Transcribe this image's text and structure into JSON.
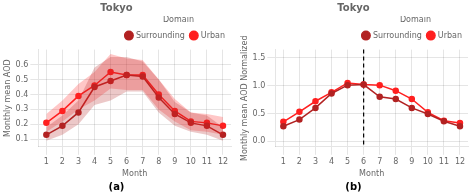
{
  "chart_data": [
    {
      "type": "line",
      "title": "Tokyo",
      "annotation": "(a)",
      "xlabel": "Month",
      "ylabel": "Monthly mean AOD",
      "x": [
        1,
        2,
        3,
        4,
        5,
        6,
        7,
        8,
        9,
        10,
        11,
        12
      ],
      "series": [
        {
          "name": "Surrounding",
          "color": "#b22222",
          "values": [
            0.13,
            0.19,
            0.28,
            0.45,
            0.49,
            0.53,
            0.52,
            0.38,
            0.27,
            0.21,
            0.19,
            0.13
          ],
          "upper": [
            0.18,
            0.26,
            0.36,
            0.58,
            0.65,
            0.65,
            0.62,
            0.5,
            0.35,
            0.28,
            0.26,
            0.18
          ],
          "lower": [
            0.09,
            0.13,
            0.2,
            0.33,
            0.36,
            0.42,
            0.42,
            0.28,
            0.19,
            0.15,
            0.13,
            0.09
          ]
        },
        {
          "name": "Urban",
          "color": "#ff2020",
          "values": [
            0.21,
            0.29,
            0.39,
            0.46,
            0.55,
            0.53,
            0.53,
            0.4,
            0.29,
            0.22,
            0.21,
            0.19
          ],
          "upper": [
            0.27,
            0.36,
            0.47,
            0.55,
            0.67,
            0.64,
            0.63,
            0.5,
            0.37,
            0.28,
            0.27,
            0.25
          ],
          "lower": [
            0.15,
            0.22,
            0.3,
            0.36,
            0.44,
            0.43,
            0.43,
            0.3,
            0.22,
            0.16,
            0.15,
            0.13
          ]
        }
      ],
      "xlim": [
        0.5,
        12.5
      ],
      "xticks": [
        1,
        2,
        3,
        4,
        5,
        6,
        7,
        8,
        9,
        10,
        11,
        12
      ],
      "ylim": [
        0.05,
        0.7
      ],
      "yticks": [
        0.1,
        0.2,
        0.3,
        0.4,
        0.5,
        0.6
      ],
      "grid": true,
      "legend": "upper right",
      "legend_title": "Domain",
      "marker": "circle"
    },
    {
      "type": "line",
      "title": "Tokyo",
      "annotation": "(b)",
      "xlabel": "Month",
      "ylabel": "Monthly mean AOD Normalized",
      "x": [
        1,
        2,
        3,
        4,
        5,
        6,
        7,
        8,
        9,
        10,
        11,
        12
      ],
      "series": [
        {
          "name": "Surrounding",
          "color": "#b22222",
          "values": [
            0.27,
            0.39,
            0.6,
            0.86,
            1.01,
            1.02,
            0.8,
            0.76,
            0.6,
            0.49,
            0.36,
            0.27
          ]
        },
        {
          "name": "Urban",
          "color": "#ff2020",
          "values": [
            0.35,
            0.53,
            0.72,
            0.88,
            1.05,
            1.02,
            1.01,
            0.91,
            0.76,
            0.52,
            0.37,
            0.33
          ]
        }
      ],
      "vline": {
        "x": 6,
        "color": "#000000",
        "line_style": "dashed"
      },
      "xlim": [
        0.5,
        12.5
      ],
      "xticks": [
        1,
        2,
        3,
        4,
        5,
        6,
        7,
        8,
        9,
        10,
        11,
        12
      ],
      "ylim": [
        -0.1,
        1.65
      ],
      "yticks": [
        {
          "value": 0.0,
          "label": "0.0"
        },
        0.5,
        {
          "value": 1.0,
          "label": "1.0"
        },
        1.5
      ],
      "grid": true,
      "legend": "upper right",
      "legend_title": "Domain",
      "marker": "circle"
    }
  ]
}
